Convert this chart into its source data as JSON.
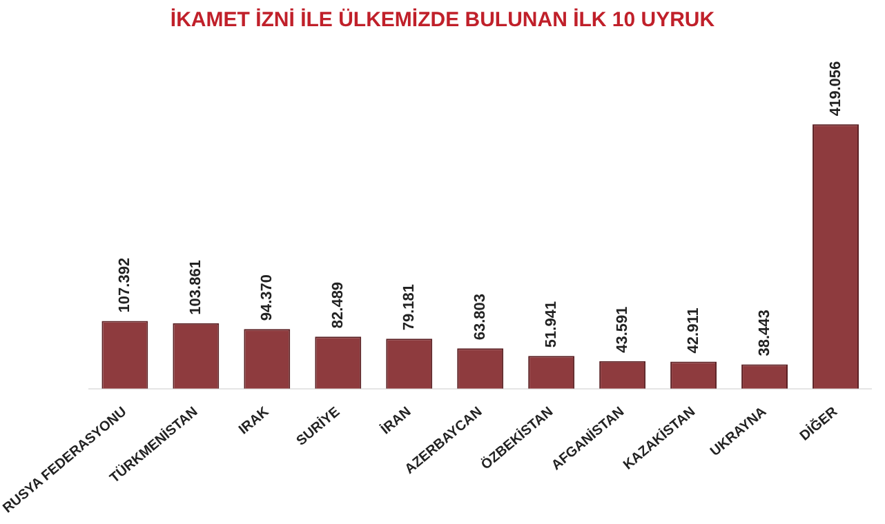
{
  "chart_data": {
    "type": "bar",
    "title": "İKAMET İZNİ İLE ÜLKEMİZDE BULUNAN İLK 10 UYRUK",
    "categories": [
      "RUSYA FEDERASYONU",
      "TÜRKMENİSTAN",
      "IRAK",
      "SURİYE",
      "İRAN",
      "AZERBAYCAN",
      "ÖZBEKİSTAN",
      "AFGANİSTAN",
      "KAZAKİSTAN",
      "UKRAYNA",
      "DİĞER"
    ],
    "values": [
      107392,
      103861,
      94370,
      82489,
      79181,
      63803,
      51941,
      43591,
      42911,
      38443,
      419056
    ],
    "value_labels": [
      "107.392",
      "103.861",
      "94.370",
      "82.489",
      "79.181",
      "63.803",
      "51.941",
      "43.591",
      "42.911",
      "38.443",
      "419.056"
    ],
    "color": "#8e3b3e",
    "grid": false
  }
}
